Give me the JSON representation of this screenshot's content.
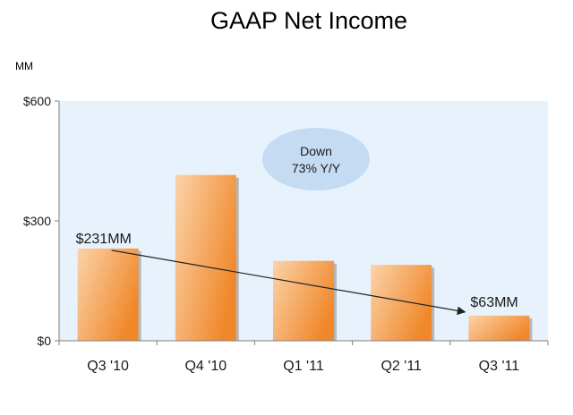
{
  "chart_data": {
    "type": "bar",
    "title": "GAAP Net Income",
    "unit_label": "MM",
    "categories": [
      "Q3 '10",
      "Q4 '10",
      "Q1 '11",
      "Q2 '11",
      "Q3 '11"
    ],
    "values": [
      231,
      415,
      200,
      190,
      63
    ],
    "ylim": [
      0,
      600
    ],
    "yticks": [
      {
        "value": 0,
        "label": "$0"
      },
      {
        "value": 300,
        "label": "$300"
      },
      {
        "value": 600,
        "label": "$600"
      }
    ],
    "xlabel": "",
    "ylabel": "",
    "grid": false,
    "legend": "none",
    "annotations": {
      "start_label": "$231MM",
      "end_label": "$63MM",
      "callout_line1": "Down",
      "callout_line2": "73% Y/Y"
    },
    "colors": {
      "plot_bg": "#e8f2fc",
      "bar_light": "#fbd3a9",
      "bar_dark": "#f0882b",
      "bar_shadow": "#b7b7b7",
      "callout_fill": "#c5dbf1",
      "arrow": "#222222",
      "text": "#1a1a1a"
    }
  }
}
